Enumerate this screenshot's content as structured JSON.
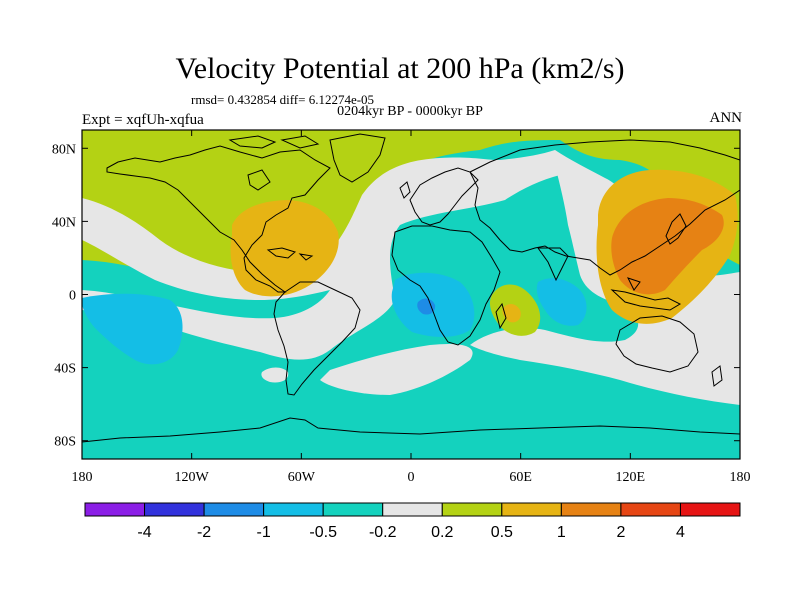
{
  "title": "Velocity Potential at 200 hPa (km2/s)",
  "rmsd_line": "rmsd= 0.432854 diff= 6.12274e-05",
  "period": "0204kyr BP - 0000kyr BP",
  "left_label": "Expt = xqfUh-xqfua",
  "right_label": "ANN",
  "map": {
    "lon_range": [
      -180,
      180
    ],
    "lat_range": [
      -90,
      90
    ],
    "x_ticks": [
      {
        "lon": -180,
        "label": "180"
      },
      {
        "lon": -120,
        "label": "120W"
      },
      {
        "lon": -60,
        "label": "60W"
      },
      {
        "lon": 0,
        "label": "0"
      },
      {
        "lon": 60,
        "label": "60E"
      },
      {
        "lon": 120,
        "label": "120E"
      },
      {
        "lon": 180,
        "label": "180"
      }
    ],
    "y_ticks": [
      {
        "lat": 80,
        "label": "80N"
      },
      {
        "lat": 40,
        "label": "40N"
      },
      {
        "lat": 0,
        "label": "0"
      },
      {
        "lat": -40,
        "label": "40S"
      },
      {
        "lat": -80,
        "label": "80S"
      }
    ]
  },
  "colorbar": {
    "colors": [
      "#8b1ee6",
      "#3232dc",
      "#1e8ce6",
      "#14bee6",
      "#14d2be",
      "#e6e6e6",
      "#b4d214",
      "#e6b414",
      "#e68214",
      "#e64614",
      "#e61414"
    ],
    "labels": [
      "-4",
      "-2",
      "-1",
      "-0.5",
      "-0.2",
      "0.2",
      "0.5",
      "1",
      "2",
      "4"
    ]
  }
}
